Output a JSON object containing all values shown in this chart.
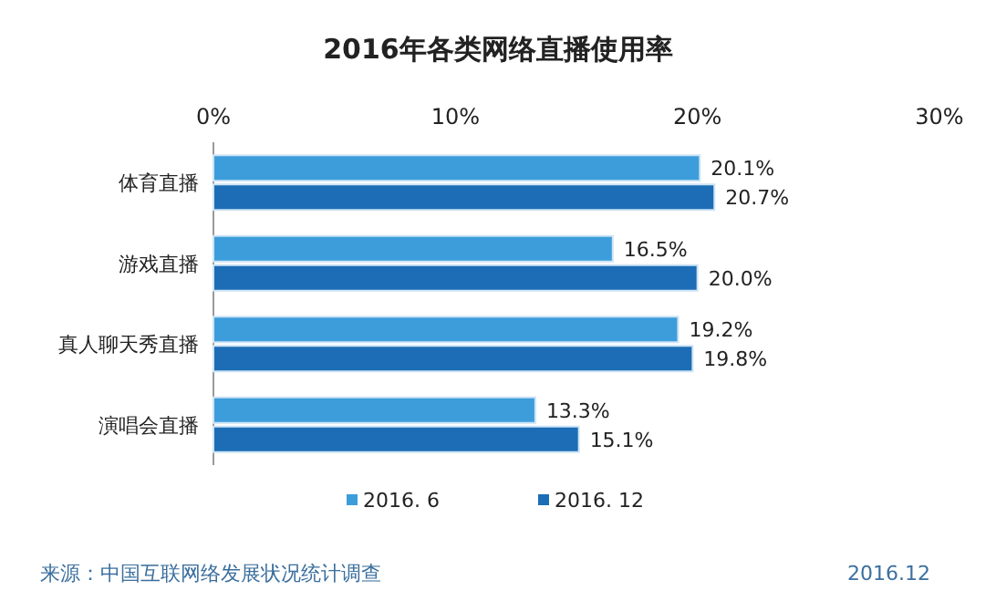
{
  "chart_data": {
    "type": "bar",
    "orientation": "horizontal",
    "title": "2016年各类网络直播使用率",
    "categories": [
      "体育直播",
      "游戏直播",
      "真人聊天秀直播",
      "演唱会直播"
    ],
    "series": [
      {
        "name": "2016. 6",
        "color": "#3d9ddb",
        "values": [
          20.1,
          16.5,
          19.2,
          13.3
        ],
        "value_labels": [
          "20.1%",
          "16.5%",
          "19.2%",
          "13.3%"
        ]
      },
      {
        "name": "2016. 12",
        "color": "#1c6db5",
        "values": [
          20.7,
          20.0,
          19.8,
          15.1
        ],
        "value_labels": [
          "20.7%",
          "20.0%",
          "19.8%",
          "15.1%"
        ]
      }
    ],
    "xlim": [
      0,
      30
    ],
    "xticks": [
      {
        "value": 0,
        "label": "0%"
      },
      {
        "value": 10,
        "label": "10%"
      },
      {
        "value": 20,
        "label": "20%"
      },
      {
        "value": 30,
        "label": "30%"
      }
    ],
    "grid": false,
    "legend": "bottom",
    "annotations": [
      "来源：中国互联网络发展状况统计调查",
      "2016.12"
    ]
  }
}
